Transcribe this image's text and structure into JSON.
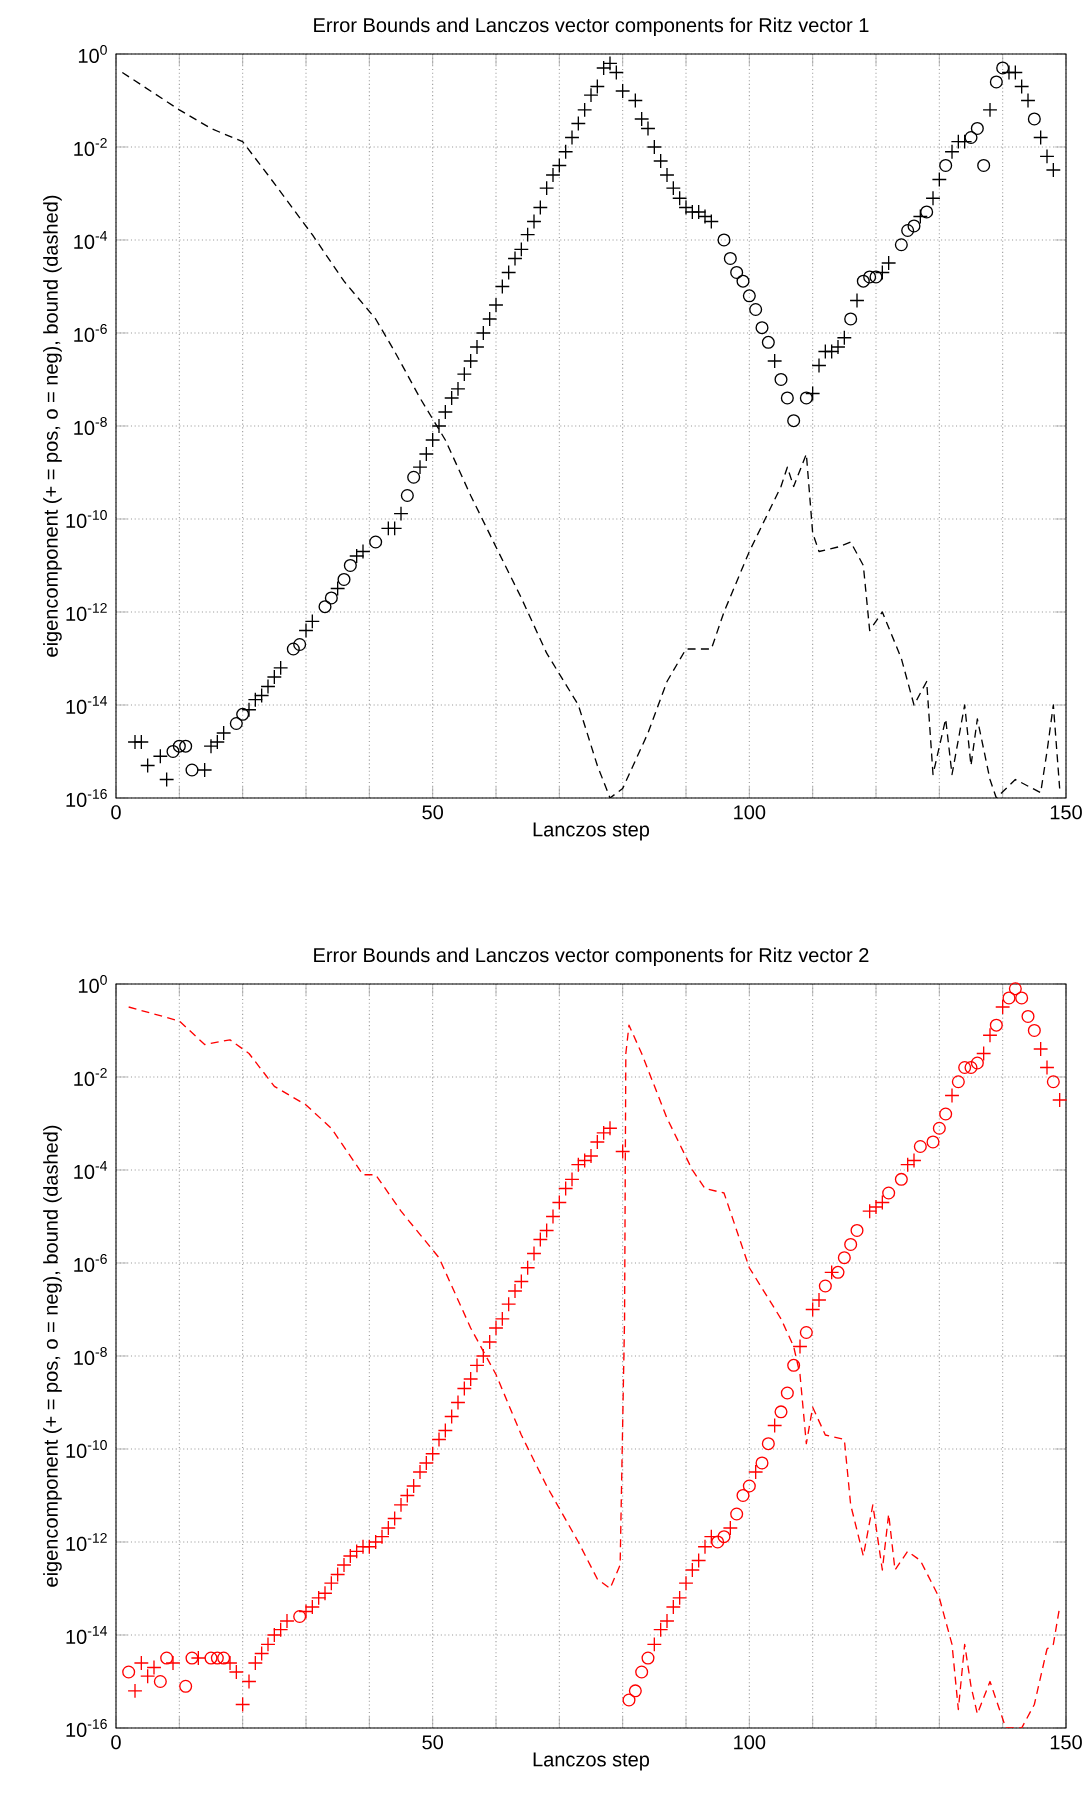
{
  "chart_data": [
    {
      "type": "scatter",
      "title": "Error Bounds and Lanczos vector components for Ritz vector 1",
      "xlabel": "Lanczos step",
      "ylabel": "eigencomponent (+ = pos, o = neg), bound (dashed)",
      "log": "y",
      "grid": true,
      "xlim": [
        0,
        150
      ],
      "ylim": [
        1e-16,
        1
      ],
      "xticks": [
        0,
        {
          "value": 10,
          "label": null
        },
        {
          "value": 20,
          "label": null
        },
        {
          "value": 30,
          "label": null
        },
        {
          "value": 40,
          "label": null
        },
        50,
        {
          "value": 60,
          "label": null
        },
        {
          "value": 70,
          "label": null
        },
        {
          "value": 80,
          "label": null
        },
        {
          "value": 90,
          "label": null
        },
        100,
        {
          "value": 110,
          "label": null
        },
        {
          "value": 120,
          "label": null
        },
        {
          "value": 130,
          "label": null
        },
        {
          "value": 140,
          "label": null
        },
        150
      ],
      "yticks": [
        {
          "value": 1e-16,
          "label": "10$^{-16}$"
        },
        {
          "value": 1e-14,
          "label": "10$^{-14}$"
        },
        {
          "value": 1e-12,
          "label": "10$^{-12}$"
        },
        {
          "value": 1e-10,
          "label": "10$^{-10}$"
        },
        {
          "value": 1e-08,
          "label": "10$^{-8}$"
        },
        {
          "value": 1e-06,
          "label": "10$^{-6}$"
        },
        {
          "value": 0.0001,
          "label": "10$^{-4}$"
        },
        {
          "value": 0.01,
          "label": "10$^{-2}$"
        },
        {
          "value": 1,
          "label": "10$^{0}$"
        }
      ],
      "series": [
        {
          "color": "#000000",
          "marker": "cross",
          "x": [
            3,
            4,
            5,
            7,
            8,
            14,
            15,
            16,
            17,
            21,
            22,
            23,
            24,
            25,
            26,
            30,
            31,
            35,
            38,
            39,
            43,
            44,
            45,
            48,
            49,
            50,
            51,
            52,
            53,
            54,
            55,
            56,
            57,
            58,
            59,
            60,
            61,
            62,
            63,
            64,
            65,
            66,
            67,
            68,
            69,
            70,
            71,
            72,
            73,
            74,
            75,
            76,
            77,
            78,
            79,
            80,
            82,
            83,
            84,
            85,
            86,
            87,
            88,
            89,
            90,
            91,
            92,
            93,
            94,
            104,
            110,
            111,
            112,
            113,
            114,
            115,
            117,
            121,
            122,
            127,
            129,
            130,
            132,
            133,
            134,
            138,
            141,
            142,
            143,
            144,
            146,
            147,
            148
          ],
          "values": [
            1.6e-15,
            1.6e-15,
            5e-16,
            7.9e-16,
            2.5e-16,
            4e-16,
            1.3e-15,
            1.6e-15,
            2.5e-15,
            7.9e-15,
            1.3e-14,
            1.6e-14,
            2.5e-14,
            4e-14,
            6.3e-14,
            4e-13,
            6.3e-13,
            3.2e-12,
            1.6e-11,
            2e-11,
            6.3e-11,
            6.3e-11,
            1.3e-10,
            1.3e-09,
            2.5e-09,
            5e-09,
            1e-08,
            2e-08,
            4e-08,
            6.3e-08,
            1.3e-07,
            2.5e-07,
            5e-07,
            1e-06,
            2e-06,
            4e-06,
            1e-05,
            2e-05,
            4e-05,
            6.3e-05,
            0.00013,
            0.00025,
            0.0005,
            0.0013,
            0.0025,
            0.004,
            0.0079,
            0.016,
            0.032,
            0.063,
            0.13,
            0.2,
            0.5,
            0.63,
            0.4,
            0.16,
            0.1,
            0.04,
            0.025,
            0.01,
            0.005,
            0.0025,
            0.0013,
            0.00079,
            0.0005,
            0.0004,
            0.0004,
            0.00032,
            0.00025,
            2.5e-07,
            5e-08,
            2e-07,
            4e-07,
            4e-07,
            5e-07,
            7.9e-07,
            5e-06,
            2e-05,
            3.2e-05,
            0.00032,
            0.00079,
            0.002,
            0.0079,
            0.013,
            0.013,
            0.063,
            0.4,
            0.4,
            0.2,
            0.1,
            0.016,
            0.0063,
            0.0032
          ]
        },
        {
          "color": "#000000",
          "marker": "circle",
          "x": [
            9,
            10,
            11,
            12,
            19,
            20,
            28,
            29,
            33,
            34,
            36,
            37,
            41,
            46,
            47,
            96,
            97,
            98,
            99,
            100,
            101,
            102,
            103,
            105,
            106,
            107,
            109,
            116,
            118,
            119,
            120,
            124,
            125,
            126,
            128,
            131,
            135,
            136,
            137,
            139,
            140,
            145
          ],
          "values": [
            1e-15,
            1.3e-15,
            1.3e-15,
            4e-16,
            4e-15,
            6.3e-15,
            1.6e-13,
            2e-13,
            1.3e-12,
            2e-12,
            5e-12,
            1e-11,
            3.2e-11,
            3.2e-10,
            7.9e-10,
            0.0001,
            4e-05,
            2e-05,
            1.3e-05,
            6.3e-06,
            3.2e-06,
            1.3e-06,
            6.3e-07,
            1e-07,
            4e-08,
            1.3e-08,
            4e-08,
            2e-06,
            1.3e-05,
            1.6e-05,
            1.6e-05,
            7.9e-05,
            0.00016,
            0.0002,
            0.0004,
            0.004,
            0.016,
            0.025,
            0.004,
            0.25,
            0.5,
            0.04
          ]
        },
        {
          "type": "line",
          "color": "#000000",
          "line_style": "dashed",
          "x": [
            1,
            10,
            15,
            20,
            24,
            31,
            36,
            41,
            44,
            48,
            52,
            56,
            60,
            64,
            68,
            73,
            76,
            78,
            80,
            84,
            87,
            90,
            94,
            96,
            100,
            105,
            106,
            107,
            109,
            110,
            111,
            114,
            116,
            118,
            119,
            121,
            124,
            126,
            128,
            129,
            131,
            132,
            134,
            135,
            136,
            138,
            139,
            142,
            146,
            147,
            148,
            149
          ],
          "values": [
            0.4,
            0.063,
            0.025,
            0.013,
            0.0025,
            0.00013,
            1.3e-05,
            2e-06,
            4e-07,
            4e-08,
            5e-09,
            3.2e-10,
            2.5e-11,
            2e-12,
            1.3e-13,
            1e-14,
            5e-16,
            1e-16,
            1.6e-16,
            2.5e-15,
            3.2e-14,
            1.6e-13,
            1.6e-13,
            1e-12,
            2e-11,
            5e-10,
            1.3e-09,
            5e-10,
            2.5e-09,
            5e-11,
            2e-11,
            2.5e-11,
            3.2e-11,
            1e-11,
            4e-13,
            1e-12,
            1e-13,
            1e-14,
            3.2e-14,
            3.2e-16,
            5e-15,
            3.2e-16,
            1e-14,
            5e-16,
            5e-15,
            2.5e-16,
            1e-16,
            2.5e-16,
            1.3e-16,
            1e-15,
            1e-14,
            1.6e-16
          ]
        }
      ]
    },
    {
      "type": "scatter",
      "title": "Error Bounds and Lanczos vector components for Ritz vector 2",
      "xlabel": "Lanczos step",
      "ylabel": "eigencomponent (+ = pos, o = neg), bound (dashed)",
      "log": "y",
      "grid": true,
      "xlim": [
        0,
        150
      ],
      "ylim": [
        1e-16,
        1
      ],
      "xticks": [
        0,
        {
          "value": 10,
          "label": null
        },
        {
          "value": 20,
          "label": null
        },
        {
          "value": 30,
          "label": null
        },
        {
          "value": 40,
          "label": null
        },
        50,
        {
          "value": 60,
          "label": null
        },
        {
          "value": 70,
          "label": null
        },
        {
          "value": 80,
          "label": null
        },
        {
          "value": 90,
          "label": null
        },
        100,
        {
          "value": 110,
          "label": null
        },
        {
          "value": 120,
          "label": null
        },
        {
          "value": 130,
          "label": null
        },
        {
          "value": 140,
          "label": null
        },
        150
      ],
      "yticks": [
        {
          "value": 1e-16,
          "label": "10$^{-16}$"
        },
        {
          "value": 1e-14,
          "label": "10$^{-14}$"
        },
        {
          "value": 1e-12,
          "label": "10$^{-12}$"
        },
        {
          "value": 1e-10,
          "label": "10$^{-10}$"
        },
        {
          "value": 1e-08,
          "label": "10$^{-8}$"
        },
        {
          "value": 1e-06,
          "label": "10$^{-6}$"
        },
        {
          "value": 0.0001,
          "label": "10$^{-4}$"
        },
        {
          "value": 0.01,
          "label": "10$^{-2}$"
        },
        {
          "value": 1,
          "label": "10$^{0}$"
        }
      ],
      "series": [
        {
          "color": "#ff0000",
          "marker": "cross",
          "x": [
            3,
            4,
            5,
            6,
            9,
            13,
            18,
            19,
            20,
            21,
            22,
            23,
            24,
            25,
            26,
            27,
            30,
            31,
            32,
            33,
            34,
            35,
            36,
            37,
            38,
            39,
            40,
            41,
            42,
            43,
            44,
            45,
            46,
            47,
            48,
            49,
            50,
            51,
            52,
            53,
            54,
            55,
            56,
            57,
            58,
            59,
            60,
            61,
            62,
            63,
            64,
            65,
            66,
            67,
            68,
            69,
            70,
            71,
            72,
            73,
            74,
            75,
            76,
            77,
            78,
            80,
            85,
            86,
            87,
            88,
            89,
            90,
            91,
            92,
            93,
            94,
            97,
            101,
            104,
            108,
            110,
            111,
            113,
            119,
            120,
            121,
            125,
            126,
            132,
            137,
            138,
            140,
            146,
            147,
            149
          ],
          "values": [
            6.3e-16,
            2.5e-15,
            1.3e-15,
            2e-15,
            2.5e-15,
            3.2e-15,
            2.5e-15,
            1.6e-15,
            3.2e-16,
            1e-15,
            2.5e-15,
            4e-15,
            6.3e-15,
            1e-14,
            1.3e-14,
            2e-14,
            3.2e-14,
            4e-14,
            6.3e-14,
            7.9e-14,
            1.3e-13,
            2e-13,
            3.2e-13,
            5e-13,
            6.3e-13,
            7.9e-13,
            7.9e-13,
            1e-12,
            1.3e-12,
            2e-12,
            3.2e-12,
            6.3e-12,
            1e-11,
            1.6e-11,
            3.2e-11,
            5e-11,
            7.9e-11,
            1.6e-10,
            2.5e-10,
            5e-10,
            1e-09,
            2e-09,
            3.2e-09,
            6.3e-09,
            1e-08,
            2e-08,
            4e-08,
            6.3e-08,
            1.3e-07,
            2.5e-07,
            4e-07,
            7.9e-07,
            1.6e-06,
            3.2e-06,
            5e-06,
            1e-05,
            2e-05,
            4e-05,
            6.3e-05,
            0.00013,
            0.00016,
            0.0002,
            0.0004,
            0.00063,
            0.00079,
            0.00025,
            6.3e-15,
            1.3e-14,
            2e-14,
            4e-14,
            6.3e-14,
            1.3e-13,
            2.5e-13,
            4e-13,
            7.9e-13,
            1.3e-12,
            2e-12,
            3.2e-11,
            3.2e-10,
            1.6e-08,
            1e-07,
            1.6e-07,
            6.3e-07,
            1.3e-05,
            1.6e-05,
            2e-05,
            0.00013,
            0.00016,
            0.004,
            0.032,
            0.079,
            0.32,
            0.04,
            0.016,
            0.0032
          ]
        },
        {
          "color": "#ff0000",
          "marker": "circle",
          "x": [
            2,
            7,
            8,
            11,
            12,
            15,
            16,
            17,
            29,
            81,
            82,
            83,
            84,
            95,
            96,
            98,
            99,
            100,
            102,
            103,
            105,
            106,
            107,
            109,
            112,
            114,
            115,
            116,
            117,
            122,
            124,
            127,
            129,
            130,
            131,
            133,
            134,
            135,
            136,
            139,
            141,
            142,
            143,
            144,
            145,
            148
          ],
          "values": [
            1.6e-15,
            1e-15,
            3.2e-15,
            7.9e-16,
            3.2e-15,
            3.2e-15,
            3.2e-15,
            3.2e-15,
            2.5e-14,
            4e-16,
            6.3e-16,
            1.6e-15,
            3.2e-15,
            1e-12,
            1.3e-12,
            4e-12,
            1e-11,
            1.6e-11,
            5e-11,
            1.3e-10,
            6.3e-10,
            1.6e-09,
            6.3e-09,
            3.2e-08,
            3.2e-07,
            6.3e-07,
            1.3e-06,
            2.5e-06,
            5e-06,
            3.2e-05,
            6.3e-05,
            0.00032,
            0.0004,
            0.00079,
            0.0016,
            0.0079,
            0.016,
            0.016,
            0.02,
            0.13,
            0.5,
            0.79,
            0.5,
            0.2,
            0.1,
            0.0079
          ]
        },
        {
          "type": "line",
          "color": "#ff0000",
          "line_style": "dashed",
          "x": [
            2,
            10,
            14,
            18,
            21,
            25,
            30,
            34,
            39,
            41,
            45,
            51,
            56,
            60,
            64,
            68,
            73,
            76,
            78,
            79.6,
            80.3,
            80.5,
            81,
            83,
            87,
            91,
            93,
            96,
            100,
            105,
            107,
            108,
            109,
            110,
            112,
            115,
            116,
            118,
            119.5,
            121,
            122,
            123,
            125,
            127,
            130,
            132,
            133,
            134,
            135,
            136,
            138,
            139.5,
            140.5,
            143,
            145,
            147,
            148,
            149
          ],
          "values": [
            0.32,
            0.16,
            0.05,
            0.063,
            0.032,
            0.0063,
            0.0025,
            0.00079,
            7.9e-05,
            7.9e-05,
            1.3e-05,
            1.3e-06,
            4e-08,
            4e-09,
            2e-10,
            1.6e-11,
            1e-12,
            1.6e-13,
            1e-13,
            3.2e-13,
            6.3e-08,
            0.032,
            0.13,
            0.032,
            0.0013,
            0.0001,
            4e-05,
            3.2e-05,
            7.9e-07,
            6.3e-08,
            1.6e-08,
            4e-09,
            1.3e-10,
            7.9e-10,
            2e-10,
            1.6e-10,
            6.3e-12,
            5e-13,
            6.3e-12,
            2.5e-13,
            4e-12,
            2.5e-13,
            6.3e-13,
            4e-13,
            6.3e-14,
            6.3e-15,
            2.5e-16,
            6.3e-15,
            7.9e-16,
            2e-16,
            1e-15,
            2.5e-16,
            1e-16,
            1e-16,
            3.2e-16,
            5e-15,
            6.3e-15,
            4e-14
          ]
        }
      ]
    }
  ]
}
